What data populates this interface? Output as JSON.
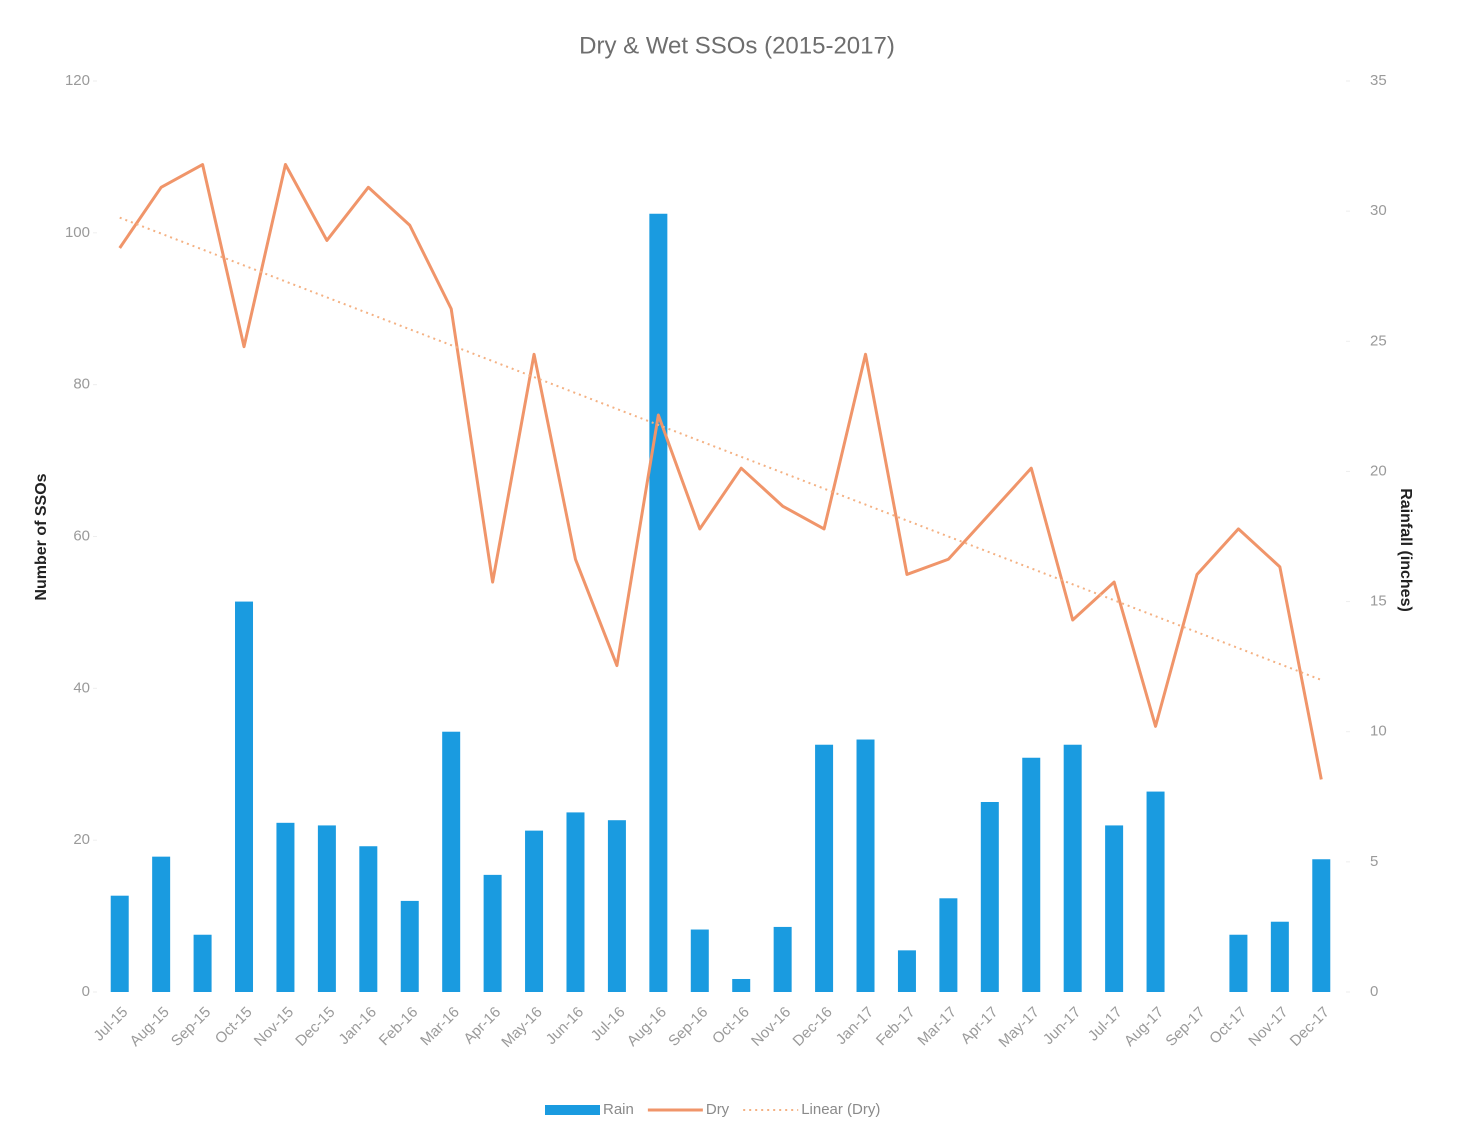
{
  "chart_data": {
    "type": "bar-line",
    "title": "Dry & Wet SSOs (2015-2017)",
    "y_label": "Number of SSOs",
    "y2_label": "Rainfall  (inches)",
    "categories": [
      "Jul-15",
      "Aug-15",
      "Sep-15",
      "Oct-15",
      "Nov-15",
      "Dec-15",
      "Jan-16",
      "Feb-16",
      "Mar-16",
      "Apr-16",
      "May-16",
      "Jun-16",
      "Jul-16",
      "Aug-16",
      "Sep-16",
      "Oct-16",
      "Nov-16",
      "Dec-16",
      "Jan-17",
      "Feb-17",
      "Mar-17",
      "Apr-17",
      "May-17",
      "Jun-17",
      "Jul-17",
      "Aug-17",
      "Sep-17",
      "Oct-17",
      "Nov-17",
      "Dec-17"
    ],
    "series": [
      {
        "name": "Rain",
        "kind": "bar",
        "axis": "y2",
        "color": "#1a9be0",
        "values": [
          3.7,
          5.2,
          2.2,
          15.0,
          6.5,
          6.4,
          5.6,
          3.5,
          10.0,
          4.5,
          6.2,
          6.9,
          6.6,
          29.9,
          2.4,
          0.5,
          2.5,
          9.5,
          9.7,
          1.6,
          3.6,
          7.3,
          9.0,
          9.5,
          6.4,
          7.7,
          0,
          2.2,
          2.7,
          5.1
        ]
      },
      {
        "name": "Dry",
        "kind": "line",
        "axis": "y",
        "color": "#f0956a",
        "values": [
          98,
          106,
          109,
          85,
          109,
          99,
          106,
          101,
          90,
          54,
          84,
          57,
          43,
          76,
          61,
          69,
          64,
          61,
          84,
          55,
          57,
          63,
          69,
          49,
          54,
          35,
          55,
          61,
          56,
          28
        ]
      },
      {
        "name": "Linear (Dry)",
        "kind": "trend",
        "axis": "y",
        "color": "#f4b183",
        "values": [
          102,
          99.9,
          97.8,
          95.7,
          93.6,
          91.5,
          89.4,
          87.3,
          85.2,
          83.1,
          81.0,
          78.9,
          76.8,
          74.7,
          72.6,
          70.5,
          68.4,
          66.3,
          64.2,
          62.1,
          60.0,
          57.9,
          55.8,
          53.7,
          51.6,
          49.5,
          47.4,
          45.3,
          43.2,
          41.1
        ]
      }
    ],
    "ylim": [
      0,
      120
    ],
    "yticks": [
      0,
      20,
      40,
      60,
      80,
      100,
      120
    ],
    "y2lim": [
      0,
      35
    ],
    "y2ticks": [
      0,
      5,
      10,
      15,
      20,
      25,
      30,
      35
    ],
    "legend": "bottom"
  }
}
